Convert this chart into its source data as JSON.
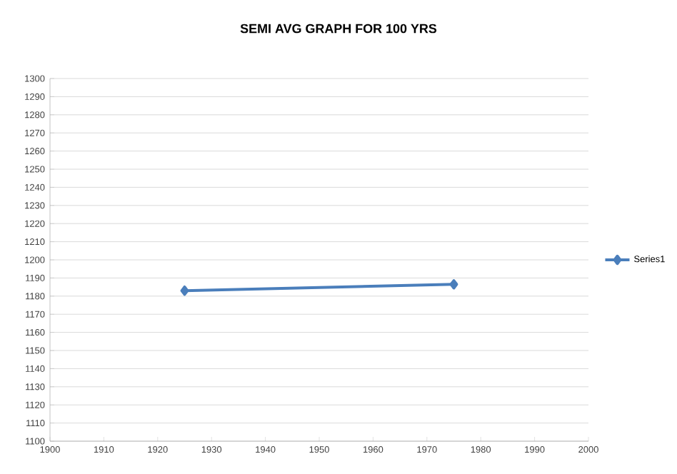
{
  "chart_data": {
    "type": "line",
    "title": "SEMI AVG  GRAPH FOR 100 YRS",
    "x": [
      1925,
      1975
    ],
    "series": [
      {
        "name": "Series1",
        "color": "#4a7ebb",
        "values": [
          1183,
          1186.5
        ]
      }
    ],
    "xlim": [
      1900,
      2000
    ],
    "xticks": [
      1900,
      1910,
      1920,
      1930,
      1940,
      1950,
      1960,
      1970,
      1980,
      1990,
      2000
    ],
    "ylim": [
      1100,
      1300
    ],
    "yticks": [
      1100,
      1110,
      1120,
      1130,
      1140,
      1150,
      1160,
      1170,
      1180,
      1190,
      1200,
      1210,
      1220,
      1230,
      1240,
      1250,
      1260,
      1270,
      1280,
      1290,
      1300
    ],
    "grid": "y",
    "legend": "right",
    "marker": "diamond",
    "line_style": "solid"
  }
}
